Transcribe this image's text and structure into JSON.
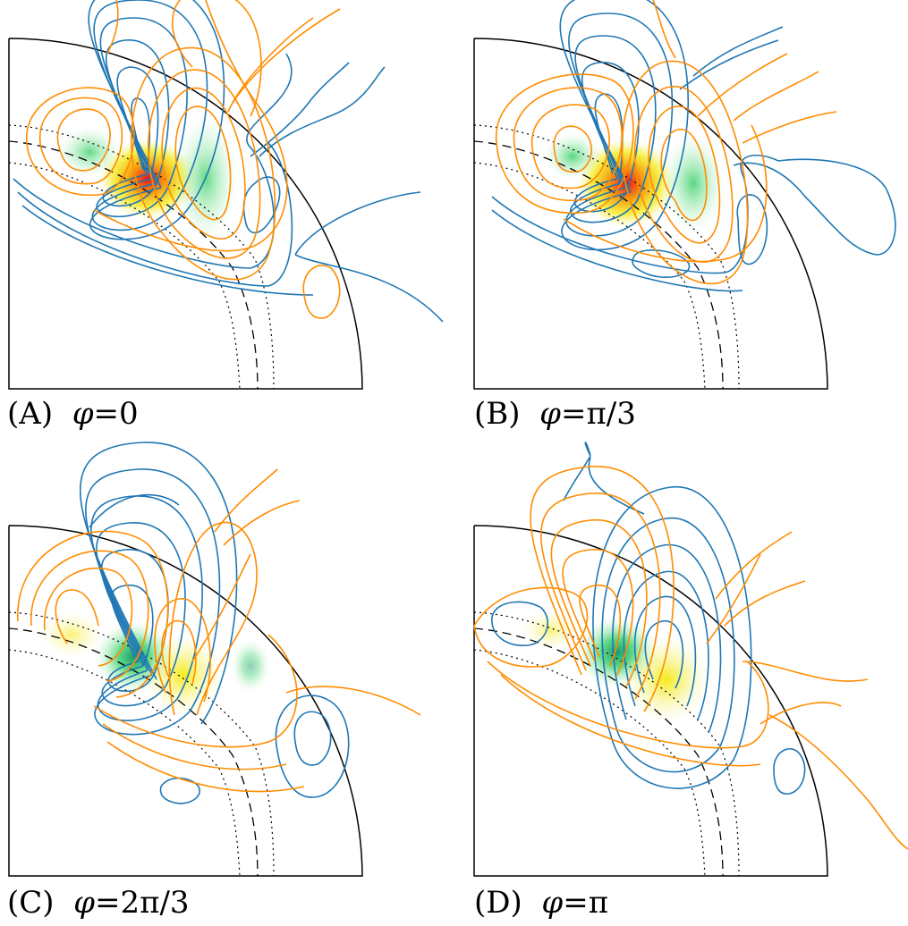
{
  "panels": [
    {
      "letter": "(A)",
      "phi_symbol": "φ",
      "equals": "=",
      "value": "0"
    },
    {
      "letter": "(B)",
      "phi_symbol": "φ",
      "equals": "=",
      "value": "π/3"
    },
    {
      "letter": "(C)",
      "phi_symbol": "φ",
      "equals": "=",
      "value": "2π/3"
    },
    {
      "letter": "(D)",
      "phi_symbol": "φ",
      "equals": "=",
      "value": "π"
    }
  ],
  "colors": {
    "positive_contour": "#ff8c00",
    "negative_contour": "#1f77b4",
    "frame": "#000000",
    "fill_high": "#e8141c",
    "fill_mid": "#f5e000",
    "fill_low": "#3bd06b"
  }
}
